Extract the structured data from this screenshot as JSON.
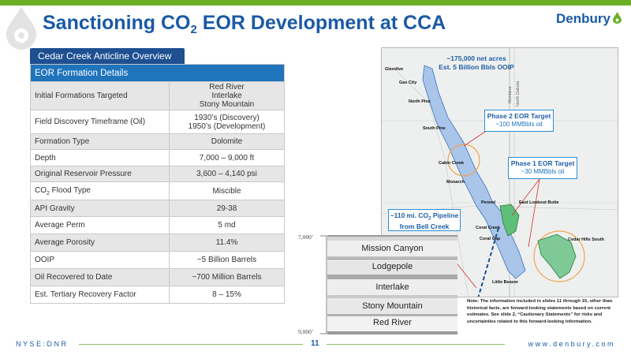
{
  "header": {
    "title_pre": "Sanctioning CO",
    "title_sub": "2",
    "title_post": " EOR Development at CCA",
    "brand": "Denbury",
    "brand_color": "#1a5aa6",
    "accent_color": "#6ab023"
  },
  "panel": {
    "tab_label": "Cedar Creek Anticline Overview",
    "table_header": "EOR Formation Details",
    "rows": [
      {
        "label": "Initial Formations Targeted",
        "value_lines": [
          "Red River",
          "Interlake",
          "Stony Mountain"
        ]
      },
      {
        "label": "Field Discovery Timeframe (Oil)",
        "value_lines": [
          "1930’s (Discovery)",
          "1950’s (Development)"
        ]
      },
      {
        "label": "Formation Type",
        "value_lines": [
          "Dolomite"
        ]
      },
      {
        "label": "Depth",
        "value_lines": [
          "7,000 – 9,000 ft"
        ]
      },
      {
        "label": "Original Reservoir Pressure",
        "value_lines": [
          "3,600 – 4,140 psi"
        ]
      },
      {
        "label_pre": "CO",
        "label_sub": "2",
        "label_post": " Flood Type",
        "value_lines": [
          "Miscible"
        ]
      },
      {
        "label": "API Gravity",
        "value_lines": [
          "29-38"
        ]
      },
      {
        "label": "Average Perm",
        "value_lines": [
          "5 md"
        ]
      },
      {
        "label": "Average Porosity",
        "value_lines": [
          "11.4%"
        ]
      },
      {
        "label": "OOIP",
        "value_lines": [
          "~5 Billion Barrels"
        ]
      },
      {
        "label": "Oil Recovered to Date",
        "value_lines": [
          "~700 Million Barrels"
        ]
      },
      {
        "label": "Est. Tertiary Recovery Factor",
        "value_lines": [
          "8 – 15%"
        ]
      }
    ]
  },
  "map": {
    "top_callout": [
      "~175,000 net acres",
      "Est. 5 Billion Bbls OOIP"
    ],
    "phase2": {
      "title": "Phase 2 EOR Target",
      "sub": "~100 MMBbls oil"
    },
    "phase1": {
      "title": "Phase 1 EOR Target",
      "sub": "~30 MMBbls oil"
    },
    "pipeline_pre": "~110 mi. CO",
    "pipeline_sub": "2",
    "pipeline_post": " Pipeline",
    "pipeline_line2": "from Bell Creek",
    "places": {
      "glendive": "Glendive",
      "gas_city": "Gas City",
      "north_pine": "North Pine",
      "south_pine": "South Pine",
      "cabin_creek": "Cabin Creek",
      "monarch": "Monarch",
      "pennel": "Pennel",
      "coral_creek": "Coral Creek",
      "coral_gap": "Coral Gap",
      "east_lookout_butte": "East Lookout Butte",
      "cedar_hills_south": "Cedar Hills South",
      "little_beaver": "Little Beaver"
    },
    "roads": {
      "montana": "Montana",
      "north_dakota": "North Dakota"
    }
  },
  "stratigraphy": {
    "depth_top": "7,000’",
    "depth_bottom": "9,000’",
    "layers": [
      "Mission Canyon",
      "Lodgepole",
      "Interlake",
      "Stony Mountain",
      "Red River"
    ]
  },
  "note": "Note: The information included in slides 11 through 15, other than historical facts, are forward-looking statements based on current estimates. See slide 2, “Cautionary Statements” for risks and uncertainties related to this forward-looking information.",
  "footer": {
    "left": "NYSE:DNR",
    "page": "11",
    "right": "www.denbury.com"
  }
}
